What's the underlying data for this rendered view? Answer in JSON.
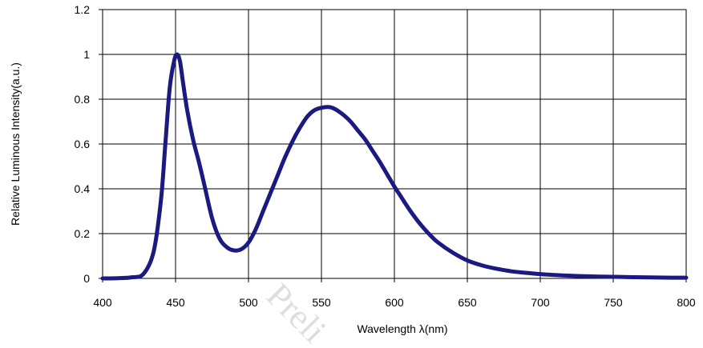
{
  "chart_data": {
    "type": "line",
    "xlabel": "Wavelength λ(nm)",
    "ylabel": "Relative Luminous Intensity(a.u.)",
    "xlim": [
      400,
      800
    ],
    "ylim": [
      0,
      1.2
    ],
    "xticks": [
      "400",
      "450",
      "500",
      "550",
      "600",
      "650",
      "700",
      "750",
      "800"
    ],
    "yticks": [
      "0",
      "0.2",
      "0.4",
      "0.6",
      "0.8",
      "1",
      "1.2"
    ],
    "grid": true,
    "legend": "none",
    "watermark": "Preli",
    "series": [
      {
        "color": "#1a1a80",
        "x": [
          400,
          410,
          420,
          428,
          435,
          440,
          443,
          446,
          449,
          451,
          453,
          455,
          458,
          462,
          466,
          470,
          475,
          480,
          485,
          490,
          495,
          500,
          505,
          510,
          515,
          520,
          525,
          530,
          535,
          540,
          545,
          550,
          555,
          558,
          562,
          566,
          570,
          575,
          580,
          585,
          590,
          595,
          600,
          605,
          610,
          615,
          620,
          625,
          630,
          640,
          650,
          660,
          670,
          680,
          690,
          700,
          710,
          720,
          730,
          740,
          750,
          760,
          770,
          780,
          790,
          800
        ],
        "y": [
          0.0,
          0.001,
          0.005,
          0.02,
          0.12,
          0.35,
          0.6,
          0.85,
          0.97,
          1.0,
          0.97,
          0.88,
          0.75,
          0.62,
          0.52,
          0.41,
          0.27,
          0.18,
          0.14,
          0.125,
          0.13,
          0.16,
          0.22,
          0.3,
          0.38,
          0.46,
          0.54,
          0.61,
          0.67,
          0.72,
          0.75,
          0.762,
          0.765,
          0.76,
          0.745,
          0.725,
          0.7,
          0.66,
          0.62,
          0.57,
          0.52,
          0.465,
          0.41,
          0.36,
          0.31,
          0.265,
          0.225,
          0.19,
          0.16,
          0.115,
          0.08,
          0.058,
          0.043,
          0.032,
          0.025,
          0.019,
          0.015,
          0.012,
          0.01,
          0.008,
          0.007,
          0.006,
          0.005,
          0.004,
          0.003,
          0.003
        ]
      }
    ]
  }
}
